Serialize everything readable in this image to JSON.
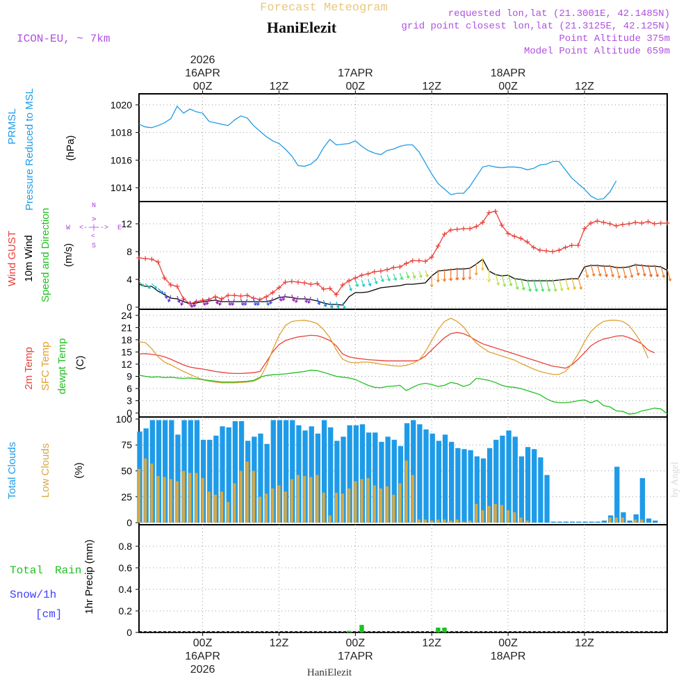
{
  "header": {
    "title": "Forecast Meteogram",
    "model": "ICON-EU, ~ 7km",
    "location": "HaniElezit",
    "requested": "requested lon,lat (21.3001E, 42.1485N)",
    "gridpoint": "grid point closest lon,lat (21.3125E, 42.125N)",
    "point_altitude": "Point Altitude 375m",
    "model_altitude": "Model Point Altitude 659m",
    "footer": "HaniElezit",
    "credit": "by Angel"
  },
  "colors": {
    "pressure": "#1e9be8",
    "gust": "#e8403a",
    "wind": "#000000",
    "temp2m": "#e8403a",
    "sfctemp": "#e0a030",
    "dewpt": "#20c020",
    "totalcloud": "#1e9be8",
    "lowcloud": "#d8a840",
    "rain": "#20c020",
    "snow": "#4040ff",
    "compass": "#b040e0",
    "text_purple": "#b050e0",
    "title_gold": "#e8c880"
  },
  "chart_data": [
    {
      "type": "line",
      "name": "pressure",
      "title": "PRMSL Pressure Reduced to MSL",
      "ylabel": "(hPa)",
      "ylim": [
        1013,
        1020.8
      ],
      "yticks": [
        1014,
        1016,
        1018,
        1020
      ],
      "x_hours_start": -10,
      "x_step": 1,
      "values": [
        1018.6,
        1018.4,
        1018.35,
        1018.5,
        1018.7,
        1019.0,
        1019.9,
        1019.4,
        1019.7,
        1019.5,
        1019.4,
        1018.8,
        1018.7,
        1018.6,
        1018.5,
        1018.9,
        1019.2,
        1019.05,
        1018.5,
        1018.1,
        1017.7,
        1017.4,
        1017.2,
        1016.8,
        1016.3,
        1015.6,
        1015.55,
        1015.7,
        1016.1,
        1016.9,
        1017.5,
        1017.1,
        1017.15,
        1017.2,
        1017.4,
        1017.0,
        1016.7,
        1016.5,
        1016.4,
        1016.7,
        1016.8,
        1017.0,
        1017.1,
        1017.1,
        1016.6,
        1015.8,
        1015.0,
        1014.3,
        1013.9,
        1013.5,
        1013.6,
        1013.6,
        1014.1,
        1014.8,
        1015.5,
        1015.6,
        1015.5,
        1015.45,
        1015.5,
        1015.5,
        1015.45,
        1015.3,
        1015.4,
        1015.65,
        1015.7,
        1015.9,
        1015.9,
        1015.3,
        1014.7,
        1014.3,
        1013.9,
        1013.4,
        1013.15,
        1013.2,
        1013.7,
        1014.5
      ]
    },
    {
      "type": "line",
      "name": "wind",
      "title": "Wind GUST / 10m Wind Speed and Direction",
      "ylabel": "(m/s)",
      "ylim": [
        -0.3,
        15.2
      ],
      "yticks": [
        0,
        4,
        8,
        12
      ],
      "compass": {
        "n": "N",
        "s": "S",
        "w": "W",
        "e": "E",
        "ns": "^ | v",
        "we": "<--|-->"
      },
      "series": [
        {
          "name": "Wind GUST",
          "values": [
            7.1,
            7.0,
            6.9,
            6.5,
            4.2,
            3.2,
            3.0,
            1.2,
            0.5,
            0.8,
            1.0,
            1.1,
            1.5,
            1.2,
            1.7,
            1.7,
            1.6,
            1.7,
            1.3,
            1.1,
            1.5,
            2.1,
            2.8,
            3.6,
            3.7,
            3.6,
            3.5,
            3.3,
            3.4,
            2.6,
            2.7,
            1.8,
            3.2,
            3.8,
            4.2,
            4.6,
            4.8,
            5.1,
            5.2,
            5.4,
            5.7,
            5.8,
            6.3,
            6.7,
            6.7,
            6.6,
            7.2,
            8.8,
            10.5,
            11.1,
            11.2,
            11.3,
            11.3,
            11.6,
            12.2,
            13.6,
            13.8,
            11.8,
            10.6,
            10.2,
            9.9,
            9.4,
            8.6,
            8.2,
            8.1,
            8.0,
            8.2,
            8.6,
            8.9,
            8.9,
            11.3,
            12.1,
            12.4,
            12.2,
            12.0,
            11.7,
            11.9,
            12.0,
            12.2,
            12.1,
            12.3,
            12.0,
            12.1,
            12.1
          ]
        },
        {
          "name": "10m Wind",
          "values": [
            3.3,
            3.0,
            3.0,
            2.3,
            1.8,
            1.3,
            1.2,
            0.8,
            0.5,
            0.6,
            0.8,
            0.9,
            1.0,
            0.8,
            0.8,
            0.8,
            0.8,
            0.8,
            0.8,
            0.8,
            0.8,
            1.0,
            1.4,
            1.5,
            1.4,
            1.2,
            1.2,
            1.1,
            0.9,
            0.6,
            0.4,
            0.4,
            0.3,
            1.5,
            2.1,
            2.1,
            2.2,
            2.5,
            2.8,
            2.9,
            3.0,
            3.1,
            3.3,
            3.3,
            3.4,
            3.5,
            4.5,
            5.2,
            5.3,
            5.4,
            5.5,
            5.5,
            5.6,
            6.2,
            6.9,
            5.2,
            4.7,
            4.5,
            4.6,
            4.1,
            4.0,
            3.8,
            3.8,
            3.8,
            3.8,
            3.8,
            3.9,
            4.0,
            4.1,
            4.1,
            5.8,
            6.0,
            6.0,
            5.9,
            5.9,
            5.7,
            5.7,
            5.8,
            6.1,
            6.0,
            5.9,
            5.9,
            5.8,
            5.3
          ]
        }
      ],
      "wind_arrow_colors": [
        "#20c0a0",
        "#20c0b8",
        "#20c8c8",
        "#2080e0",
        "#3050e0",
        "#6030d0",
        "#7828c8",
        "#8020c0",
        "#8820c0",
        "#9020b8",
        "#9820b0",
        "#a020a8",
        "#a020a0",
        "#9828b0",
        "#8830c0",
        "#7838c8",
        "#6840d0",
        "#5848d8",
        "#4050e0",
        "#3058e8",
        "#2868e8",
        "#7040d8",
        "#9030c8",
        "#a028c0",
        "#b020b8",
        "#a828c0",
        "#9030c8",
        "#8038d0",
        "#2060e8",
        "#2080e8",
        "#20a0e0",
        "#20b0d8",
        "#20c0d0",
        "#20c8c0",
        "#20d0b0",
        "#20c8c8",
        "#20c0d8",
        "#20d0c0",
        "#20d8a8",
        "#20e0a0",
        "#30e090",
        "#40e080",
        "#60e060",
        "#90e040",
        "#a0e040",
        "#d0d040",
        "#e8a030",
        "#f08020",
        "#f07820",
        "#f07020",
        "#f06818",
        "#f06018",
        "#f08030",
        "#e8a040",
        "#f0c040",
        "#e8e040",
        "#c0e040",
        "#a0e040",
        "#90e040",
        "#80e040",
        "#60e040",
        "#40e060",
        "#30e070",
        "#40e060",
        "#60e050",
        "#90e040",
        "#c0e040",
        "#e0d040",
        "#f0b030",
        "#f09030",
        "#f08028",
        "#f07828",
        "#f07020",
        "#f06818",
        "#f07020",
        "#f08028",
        "#f07828",
        "#f07020",
        "#f06818",
        "#f06018",
        "#f05818",
        "#f06020",
        "#f07028",
        "#f08030"
      ]
    },
    {
      "type": "line",
      "name": "temperature",
      "title": "2m Temp / SFC Temp / dewpt Temp",
      "ylabel": "(C)",
      "ylim": [
        -1,
        25.5
      ],
      "yticks": [
        0,
        3,
        6,
        9,
        12,
        15,
        18,
        21,
        24
      ],
      "series": [
        {
          "name": "2m Temp",
          "values": [
            14.5,
            14.6,
            14.4,
            14.2,
            13.8,
            13.2,
            12.5,
            11.8,
            11.3,
            11.0,
            10.8,
            10.5,
            10.2,
            10.0,
            9.8,
            9.7,
            9.7,
            9.8,
            9.9,
            10.2,
            12.5,
            15.0,
            16.8,
            17.8,
            18.3,
            18.7,
            18.9,
            19.1,
            19.0,
            18.5,
            17.8,
            16.5,
            14.5,
            13.8,
            13.5,
            13.3,
            13.1,
            13.0,
            12.9,
            12.8,
            12.8,
            12.8,
            12.8,
            12.8,
            13.0,
            14.0,
            15.5,
            17.0,
            18.5,
            19.5,
            19.8,
            19.5,
            18.8,
            17.8,
            17.0,
            16.5,
            16.0,
            15.5,
            15.0,
            14.5,
            14.0,
            13.5,
            13.0,
            12.5,
            12.0,
            11.5,
            11.3,
            11.0,
            11.8,
            13.2,
            14.8,
            16.5,
            17.5,
            18.2,
            18.5,
            18.9,
            19.0,
            18.5,
            17.8,
            17.0,
            15.5,
            14.8
          ]
        },
        {
          "name": "SFC Temp",
          "values": [
            17.5,
            17.3,
            15.8,
            13.8,
            12.5,
            11.8,
            11.0,
            10.2,
            9.5,
            8.8,
            8.2,
            7.8,
            7.6,
            7.4,
            7.4,
            7.4,
            7.5,
            7.6,
            7.8,
            8.5,
            11.5,
            15.5,
            19.0,
            21.5,
            22.5,
            22.7,
            22.8,
            22.5,
            22.0,
            20.5,
            18.5,
            15.5,
            13.2,
            12.5,
            12.3,
            12.5,
            12.5,
            12.3,
            12.0,
            11.8,
            11.6,
            11.5,
            11.7,
            12.2,
            13.0,
            15.0,
            17.8,
            20.5,
            22.5,
            23.3,
            22.5,
            21.2,
            19.0,
            17.2,
            16.0,
            15.0,
            14.5,
            14.0,
            13.5,
            13.0,
            12.2,
            11.5,
            10.8,
            10.2,
            9.8,
            9.5,
            9.5,
            10.2,
            12.0,
            14.5,
            17.5,
            20.0,
            21.5,
            22.5,
            22.8,
            22.8,
            22.5,
            21.5,
            19.5,
            17.0,
            13.5
          ]
        },
        {
          "name": "dewpt Temp",
          "values": [
            9.3,
            9.0,
            8.8,
            8.9,
            8.7,
            8.8,
            8.6,
            8.5,
            8.6,
            8.4,
            8.2,
            8.0,
            7.8,
            7.6,
            7.6,
            7.6,
            7.7,
            7.8,
            8.0,
            8.8,
            9.2,
            9.4,
            9.5,
            9.6,
            9.8,
            10.0,
            10.2,
            10.5,
            10.4,
            10.0,
            9.5,
            9.0,
            8.8,
            8.6,
            8.2,
            7.5,
            6.8,
            6.3,
            6.2,
            6.5,
            6.6,
            6.8,
            5.5,
            6.3,
            7.0,
            7.3,
            7.0,
            6.5,
            6.8,
            7.5,
            7.2,
            6.5,
            7.0,
            8.5,
            8.3,
            8.0,
            7.5,
            6.8,
            6.4,
            6.3,
            6.0,
            5.5,
            5.0,
            4.5,
            3.5,
            2.8,
            2.5,
            2.5,
            2.7,
            3.0,
            3.2,
            2.5,
            3.1,
            1.8,
            1.5,
            0.5,
            0.4,
            -0.3,
            -0.1,
            0.5,
            0.8,
            1.2,
            1.0,
            -0.2
          ]
        }
      ]
    },
    {
      "type": "bar",
      "name": "clouds",
      "title": "Total Clouds / Low Clouds",
      "ylabel": "(%)",
      "ylim": [
        -2,
        102
      ],
      "yticks": [
        0,
        25,
        50,
        75,
        100
      ],
      "series": [
        {
          "name": "Total Clouds",
          "values": [
            88,
            91,
            99,
            99,
            99,
            99,
            85,
            99,
            99,
            99,
            80,
            80,
            84,
            93,
            92,
            98,
            98,
            79,
            83,
            86,
            76,
            99,
            99,
            99,
            99,
            94,
            89,
            93,
            86,
            99,
            92,
            79,
            83,
            94,
            94,
            95,
            87,
            87,
            78,
            83,
            80,
            74,
            96,
            99,
            95,
            90,
            86,
            79,
            85,
            78,
            72,
            71,
            70,
            64,
            62,
            72,
            80,
            84,
            89,
            83,
            64,
            73,
            71,
            63,
            46,
            1,
            1,
            1,
            1,
            1,
            1,
            1,
            1,
            2,
            7,
            54,
            10,
            2,
            8,
            43,
            4,
            2
          ]
        },
        {
          "name": "Low Clouds",
          "values": [
            52,
            62,
            57,
            45,
            44,
            42,
            40,
            50,
            48,
            48,
            43,
            30,
            27,
            30,
            20,
            38,
            50,
            59,
            50,
            25,
            28,
            33,
            36,
            30,
            42,
            46,
            45,
            44,
            46,
            29,
            7,
            29,
            28,
            33,
            40,
            42,
            43,
            36,
            33,
            35,
            27,
            38,
            60,
            46,
            3,
            3,
            2,
            3,
            3,
            2,
            3,
            1,
            2,
            18,
            12,
            16,
            18,
            17,
            12,
            10,
            5,
            2,
            0,
            0,
            0,
            0,
            0,
            0,
            0,
            0,
            0,
            0,
            0,
            0,
            5,
            5,
            5,
            0,
            3,
            3,
            0,
            0
          ]
        }
      ]
    },
    {
      "type": "bar",
      "name": "precipitation",
      "title": "Total Rain / Snow/1h [cm]",
      "ylabel": "1hr Precip (mm)",
      "ylim": [
        0,
        1.0
      ],
      "yticks": [
        0,
        0.2,
        0.4,
        0.6,
        0.8
      ],
      "ytick_labels": [
        "0",
        "0.2",
        "0.4",
        "0.6",
        "0.8"
      ],
      "labels": {
        "total": "Total",
        "rain": "Rain",
        "snow": "Snow/1h",
        "unit": "[cm]"
      },
      "series": [
        {
          "name": "Rain",
          "points": [
            [
              23,
              0.015
            ],
            [
              25,
              0.07
            ],
            [
              37,
              0.045
            ],
            [
              38,
              0.045
            ]
          ]
        }
      ]
    }
  ],
  "time_axis": {
    "top_labels": [
      {
        "hour": 0,
        "lines": [
          "2026",
          "16APR",
          "00Z"
        ]
      },
      {
        "hour": 12,
        "lines": [
          "12Z"
        ]
      },
      {
        "hour": 24,
        "lines": [
          "17APR",
          "00Z"
        ]
      },
      {
        "hour": 36,
        "lines": [
          "12Z"
        ]
      },
      {
        "hour": 48,
        "lines": [
          "18APR",
          "00Z"
        ]
      },
      {
        "hour": 60,
        "lines": [
          "12Z"
        ]
      }
    ],
    "bottom_labels": [
      {
        "hour": 0,
        "lines": [
          "00Z",
          "16APR",
          "2026"
        ]
      },
      {
        "hour": 12,
        "lines": [
          "12Z"
        ]
      },
      {
        "hour": 24,
        "lines": [
          "00Z",
          "17APR"
        ]
      },
      {
        "hour": 36,
        "lines": [
          "12Z"
        ]
      },
      {
        "hour": 48,
        "lines": [
          "00Z",
          "18APR"
        ]
      },
      {
        "hour": 60,
        "lines": [
          "12Z"
        ]
      }
    ]
  },
  "panel_labels": {
    "pressure": [
      "PRMSL",
      "Pressure Reduced to MSL",
      "(hPa)"
    ],
    "wind": [
      "Wind GUST",
      "10m Wind",
      "Speed and Direction",
      "(m/s)"
    ],
    "temp": [
      "2m Temp",
      "SFC Temp",
      "dewpt Temp",
      "(C)"
    ],
    "cloud": [
      "Total Clouds",
      "Low Clouds",
      "(%)"
    ],
    "precip": [
      "1hr Precip (mm)"
    ]
  }
}
